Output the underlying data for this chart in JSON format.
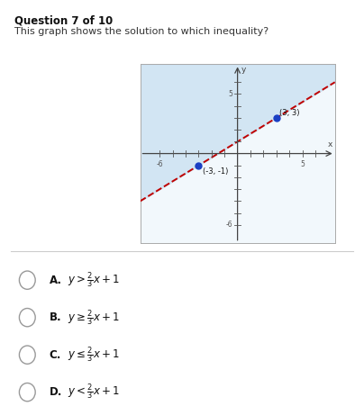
{
  "title": "Question 7 of 10",
  "subtitle": "This graph shows the solution to which inequality?",
  "xlim": [
    -7.5,
    7.5
  ],
  "ylim": [
    -7.5,
    7.5
  ],
  "slope": 0.6667,
  "intercept": 1,
  "shade_color": "#c8dff0",
  "shade_alpha": 0.75,
  "line_color": "#c00000",
  "line_style": "--",
  "line_width": 1.4,
  "points": [
    [
      -3,
      -1
    ],
    [
      3,
      3
    ]
  ],
  "point_color": "#1a3fc4",
  "point_size": 25,
  "point_labels": [
    "(-3, -1)",
    "(3, 3)"
  ],
  "bg_color": "#ffffff",
  "graph_border_color": "#aaaaaa",
  "options": [
    {
      "label": "A.",
      "math": "y>\\frac{2}{3}x+1"
    },
    {
      "label": "B.",
      "math": "y\\geq\\frac{2}{3}x+1"
    },
    {
      "label": "C.",
      "math": "y\\leq\\frac{2}{3}x+1"
    },
    {
      "label": "D.",
      "math": "y<\\frac{2}{3}x+1"
    }
  ]
}
